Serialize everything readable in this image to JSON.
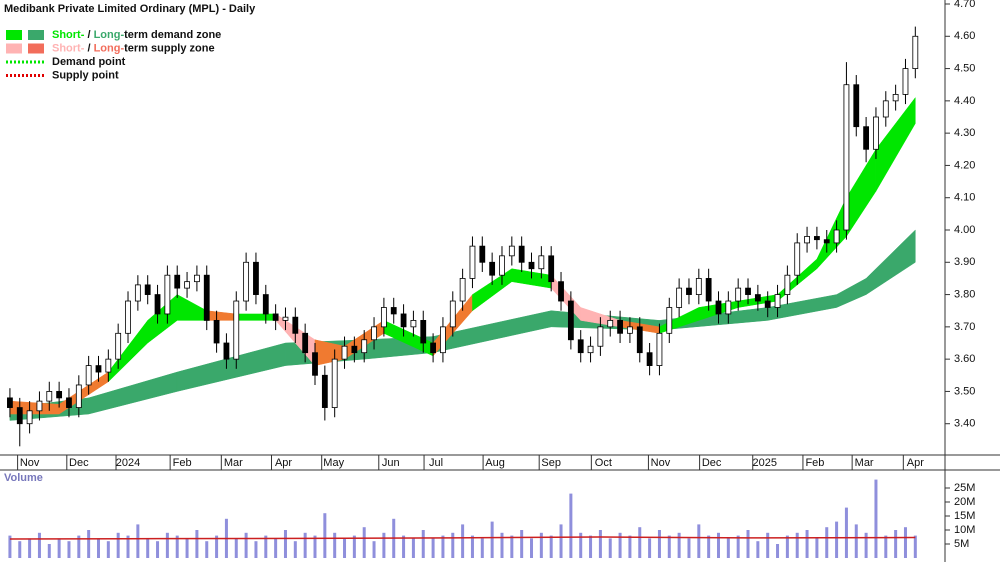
{
  "chart_data": {
    "type": "candlestick",
    "title": "Medibank Private Limited Ordinary (MPL) - Daily",
    "legend": [
      {
        "parts": [
          "Short-",
          " / ",
          "Long-",
          "term demand zone"
        ],
        "colors": [
          "#00e600",
          "#3aa86b"
        ]
      },
      {
        "parts": [
          "Short-",
          " / ",
          "Long-",
          "term supply zone"
        ],
        "colors": [
          "#ffb3b3",
          "#f26d5b"
        ]
      },
      {
        "parts": [
          "Demand point"
        ],
        "colors": [
          "#00e600"
        ]
      },
      {
        "parts": [
          "Supply point"
        ],
        "colors": [
          "#e00000"
        ]
      }
    ],
    "xticks": [
      {
        "value": 2,
        "label": "Nov"
      },
      {
        "value": 7,
        "label": "Dec"
      },
      {
        "value": 12,
        "label": "2024"
      },
      {
        "value": 17.5,
        "label": "Feb"
      },
      {
        "value": 22.7,
        "label": "Mar"
      },
      {
        "value": 27.8,
        "label": "Apr"
      },
      {
        "value": 32.9,
        "label": "May"
      },
      {
        "value": 38.7,
        "label": "Jun"
      },
      {
        "value": 43.3,
        "label": "Jul"
      },
      {
        "value": 49.3,
        "label": "Aug"
      },
      {
        "value": 55,
        "label": "Sep"
      },
      {
        "value": 60.3,
        "label": "Oct"
      },
      {
        "value": 66.1,
        "label": "Nov"
      },
      {
        "value": 71.3,
        "label": "Dec"
      },
      {
        "value": 76.7,
        "label": "2025"
      },
      {
        "value": 81.8,
        "label": "Feb"
      },
      {
        "value": 86.8,
        "label": "Mar"
      },
      {
        "value": 92,
        "label": "Apr"
      }
    ],
    "xlim": [
      -0.5,
      94
    ],
    "ylim": [
      3.3,
      4.7
    ],
    "yticks": [
      {
        "value": 3.4,
        "label": "3.40"
      },
      {
        "value": 3.5,
        "label": "3.50"
      },
      {
        "value": 3.6,
        "label": "3.60"
      },
      {
        "value": 3.7,
        "label": "3.70"
      },
      {
        "value": 3.8,
        "label": "3.80"
      },
      {
        "value": 3.9,
        "label": "3.90"
      },
      {
        "value": 4.0,
        "label": "4.00"
      },
      {
        "value": 4.1,
        "label": "4.10"
      },
      {
        "value": 4.2,
        "label": "4.20"
      },
      {
        "value": 4.3,
        "label": "4.30"
      },
      {
        "value": 4.4,
        "label": "4.40"
      },
      {
        "value": 4.5,
        "label": "4.50"
      },
      {
        "value": 4.6,
        "label": "4.60"
      },
      {
        "value": 4.7,
        "label": "4.70"
      }
    ],
    "open": [
      3.48,
      3.45,
      3.4,
      3.44,
      3.47,
      3.5,
      3.48,
      3.45,
      3.52,
      3.58,
      3.56,
      3.6,
      3.68,
      3.78,
      3.83,
      3.8,
      3.74,
      3.86,
      3.82,
      3.84,
      3.86,
      3.72,
      3.65,
      3.6,
      3.78,
      3.9,
      3.8,
      3.74,
      3.72,
      3.73,
      3.68,
      3.62,
      3.55,
      3.45,
      3.6,
      3.64,
      3.62,
      3.66,
      3.7,
      3.76,
      3.74,
      3.7,
      3.72,
      3.65,
      3.62,
      3.7,
      3.78,
      3.85,
      3.95,
      3.9,
      3.86,
      3.92,
      3.95,
      3.9,
      3.88,
      3.92,
      3.84,
      3.78,
      3.66,
      3.62,
      3.64,
      3.7,
      3.72,
      3.68,
      3.7,
      3.62,
      3.58,
      3.68,
      3.76,
      3.82,
      3.8,
      3.85,
      3.78,
      3.74,
      3.78,
      3.82,
      3.8,
      3.78,
      3.76,
      3.8,
      3.86,
      3.96,
      3.98,
      3.97,
      3.96,
      4.0,
      4.45,
      4.32,
      4.25,
      4.35,
      4.4,
      4.42,
      4.5
    ],
    "high": [
      3.51,
      3.48,
      3.47,
      3.5,
      3.53,
      3.53,
      3.51,
      3.55,
      3.61,
      3.61,
      3.63,
      3.71,
      3.81,
      3.86,
      3.86,
      3.83,
      3.89,
      3.89,
      3.87,
      3.89,
      3.89,
      3.75,
      3.68,
      3.81,
      3.93,
      3.93,
      3.83,
      3.77,
      3.76,
      3.76,
      3.71,
      3.65,
      3.58,
      3.63,
      3.67,
      3.67,
      3.69,
      3.73,
      3.79,
      3.79,
      3.77,
      3.75,
      3.75,
      3.68,
      3.73,
      3.81,
      3.88,
      3.98,
      3.98,
      3.93,
      3.95,
      3.98,
      3.98,
      3.93,
      3.95,
      3.95,
      3.87,
      3.81,
      3.69,
      3.67,
      3.73,
      3.75,
      3.75,
      3.73,
      3.73,
      3.65,
      3.71,
      3.79,
      3.85,
      3.85,
      3.88,
      3.88,
      3.81,
      3.81,
      3.85,
      3.85,
      3.83,
      3.81,
      3.83,
      3.89,
      3.99,
      4.01,
      4.01,
      4.0,
      4.03,
      4.52,
      4.48,
      4.35,
      4.38,
      4.43,
      4.45,
      4.53,
      4.63
    ],
    "low": [
      3.42,
      3.33,
      3.37,
      3.41,
      3.44,
      3.45,
      3.42,
      3.42,
      3.49,
      3.53,
      3.53,
      3.57,
      3.65,
      3.75,
      3.77,
      3.71,
      3.71,
      3.79,
      3.79,
      3.81,
      3.69,
      3.62,
      3.57,
      3.57,
      3.75,
      3.77,
      3.71,
      3.69,
      3.69,
      3.65,
      3.59,
      3.52,
      3.41,
      3.42,
      3.57,
      3.59,
      3.59,
      3.63,
      3.67,
      3.71,
      3.67,
      3.67,
      3.62,
      3.59,
      3.59,
      3.67,
      3.75,
      3.82,
      3.87,
      3.83,
      3.83,
      3.89,
      3.87,
      3.85,
      3.85,
      3.81,
      3.75,
      3.63,
      3.59,
      3.59,
      3.61,
      3.67,
      3.65,
      3.65,
      3.59,
      3.55,
      3.55,
      3.65,
      3.73,
      3.77,
      3.77,
      3.75,
      3.71,
      3.71,
      3.75,
      3.77,
      3.75,
      3.73,
      3.73,
      3.77,
      3.83,
      3.93,
      3.94,
      3.93,
      3.93,
      3.97,
      4.29,
      4.21,
      4.22,
      4.32,
      4.37,
      4.39,
      4.47
    ],
    "close": [
      3.45,
      3.4,
      3.44,
      3.47,
      3.5,
      3.48,
      3.45,
      3.52,
      3.58,
      3.56,
      3.6,
      3.68,
      3.78,
      3.83,
      3.8,
      3.74,
      3.86,
      3.82,
      3.84,
      3.86,
      3.72,
      3.65,
      3.6,
      3.78,
      3.9,
      3.8,
      3.74,
      3.72,
      3.73,
      3.68,
      3.62,
      3.55,
      3.45,
      3.6,
      3.64,
      3.62,
      3.66,
      3.7,
      3.76,
      3.74,
      3.7,
      3.72,
      3.65,
      3.62,
      3.7,
      3.78,
      3.85,
      3.95,
      3.9,
      3.86,
      3.92,
      3.95,
      3.9,
      3.88,
      3.92,
      3.84,
      3.78,
      3.66,
      3.62,
      3.64,
      3.7,
      3.72,
      3.68,
      3.7,
      3.62,
      3.58,
      3.68,
      3.76,
      3.82,
      3.8,
      3.85,
      3.78,
      3.74,
      3.78,
      3.82,
      3.8,
      3.78,
      3.76,
      3.8,
      3.86,
      3.96,
      3.98,
      3.97,
      3.96,
      4.0,
      4.45,
      4.32,
      4.25,
      4.35,
      4.4,
      4.42,
      4.5,
      4.6
    ],
    "zones": [
      {
        "x": [
          0,
          8,
          17,
          28,
          36,
          43,
          55,
          66,
          77,
          84,
          87,
          92
        ],
        "upper": [
          3.45,
          3.48,
          3.56,
          3.65,
          3.66,
          3.67,
          3.75,
          3.72,
          3.76,
          3.8,
          3.85,
          4.0
        ],
        "lower": [
          3.41,
          3.43,
          3.5,
          3.58,
          3.6,
          3.62,
          3.7,
          3.69,
          3.72,
          3.76,
          3.8,
          3.9
        ],
        "colors": [
          "#3aa86b",
          "#3aa86b",
          "#3aa86b",
          "#3aa86b",
          "#3aa86b",
          "#3aa86b",
          "#3aa86b",
          "#3aa86b",
          "#3aa86b",
          "#3aa86b",
          "#3aa86b",
          "#3aa86b"
        ]
      },
      {
        "x": [
          0,
          5,
          10,
          14,
          17,
          20,
          23,
          27,
          31,
          34,
          38,
          43,
          47,
          51,
          55,
          58,
          62,
          66,
          70,
          74,
          78,
          82,
          85,
          88,
          92
        ],
        "upper": [
          3.47,
          3.46,
          3.56,
          3.72,
          3.8,
          3.75,
          3.74,
          3.74,
          3.66,
          3.64,
          3.72,
          3.65,
          3.8,
          3.88,
          3.86,
          3.76,
          3.72,
          3.7,
          3.76,
          3.78,
          3.8,
          3.91,
          4.1,
          4.25,
          4.41
        ],
        "lower": [
          3.43,
          3.43,
          3.53,
          3.65,
          3.72,
          3.72,
          3.72,
          3.72,
          3.58,
          3.6,
          3.68,
          3.61,
          3.75,
          3.84,
          3.82,
          3.72,
          3.7,
          3.68,
          3.72,
          3.76,
          3.78,
          3.88,
          3.98,
          4.12,
          4.33
        ],
        "colors": [
          "#f07a30",
          "#f07a30",
          "#00e600",
          "#00e600",
          "#00e600",
          "#f07a30",
          "#00e600",
          "#ffb3b3",
          "#f07a30",
          "#f07a30",
          "#00e600",
          "#f07a30",
          "#00e600",
          "#00e600",
          "#ffb3b3",
          "#ffb3b3",
          "#f07a30",
          "#00e600",
          "#00e600",
          "#00e600",
          "#00e600",
          "#00e600",
          "#00e600",
          "#00e600",
          "#00e600"
        ]
      }
    ],
    "volume_label": "Volume",
    "volume": [
      8,
      6,
      7,
      9,
      5,
      7,
      6,
      8,
      10,
      7,
      6,
      9,
      8,
      12,
      7,
      6,
      9,
      8,
      7,
      10,
      6,
      8,
      14,
      7,
      9,
      6,
      8,
      7,
      10,
      6,
      9,
      8,
      16,
      9,
      7,
      8,
      11,
      6,
      9,
      14,
      8,
      7,
      10,
      7,
      8,
      9,
      12,
      8,
      7,
      13,
      9,
      8,
      10,
      7,
      9,
      8,
      12,
      23,
      9,
      8,
      10,
      7,
      9,
      8,
      11,
      7,
      10,
      8,
      9,
      7,
      12,
      8,
      9,
      7,
      8,
      10,
      6,
      9,
      5,
      8,
      9,
      10,
      7,
      11,
      13,
      18,
      12,
      9,
      28,
      8,
      10,
      11,
      8
    ],
    "volume_color": "#8f8fdc",
    "volume_ma": {
      "x": [
        0,
        15,
        30,
        45,
        60,
        75,
        92
      ],
      "values": [
        6.8,
        6.9,
        7.0,
        7.2,
        7.5,
        7.2,
        7.3
      ],
      "color": "#cc2020"
    },
    "volume_ylim": [
      0,
      30
    ],
    "volume_ticks": [
      {
        "value": 5,
        "label": "5M"
      },
      {
        "value": 10,
        "label": "10M"
      },
      {
        "value": 15,
        "label": "15M"
      },
      {
        "value": 20,
        "label": "20M"
      },
      {
        "value": 25,
        "label": "25M"
      }
    ]
  }
}
